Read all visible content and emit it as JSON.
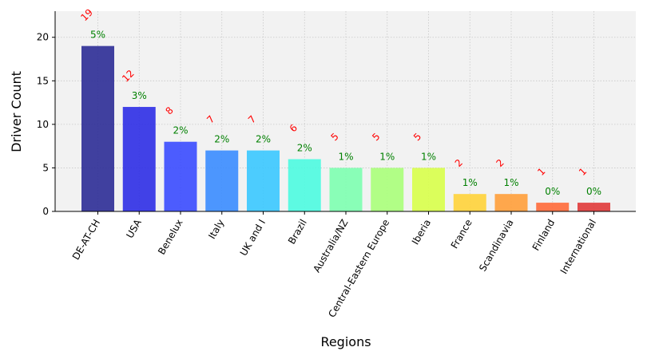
{
  "chart_data": {
    "type": "bar",
    "categories": [
      "DE-AT-CH",
      "USA",
      "Benelux",
      "Italy",
      "UK and I",
      "Brazil",
      "Australia/NZ",
      "Central-Eastern Europe",
      "Iberia",
      "France",
      "Scandinavia",
      "Finland",
      "International"
    ],
    "values": [
      19,
      12,
      8,
      7,
      7,
      6,
      5,
      5,
      5,
      2,
      2,
      1,
      1
    ],
    "count_labels": [
      "19",
      "12",
      "8",
      "7",
      "7",
      "6",
      "5",
      "5",
      "5",
      "2",
      "2",
      "1",
      "1"
    ],
    "percent_labels": [
      "5%",
      "3%",
      "2%",
      "2%",
      "2%",
      "2%",
      "1%",
      "1%",
      "1%",
      "1%",
      "1%",
      "0%",
      "0%"
    ],
    "bar_colors": [
      "#2c2c96",
      "#2e2ee6",
      "#3a4bff",
      "#3a8cff",
      "#3ac8ff",
      "#4dfbe0",
      "#7dffb0",
      "#aaff7a",
      "#d8ff4a",
      "#ffd33a",
      "#ff9f3a",
      "#ff6a3a",
      "#e03a3a"
    ],
    "count_label_color": "#ff0000",
    "percent_label_color": "#008000",
    "xlabel": "Regions",
    "ylabel": "Driver Count",
    "ylim": [
      0,
      23
    ],
    "yticks": [
      0,
      5,
      10,
      15,
      20
    ],
    "grid": true,
    "background": "#f2f2f2"
  }
}
